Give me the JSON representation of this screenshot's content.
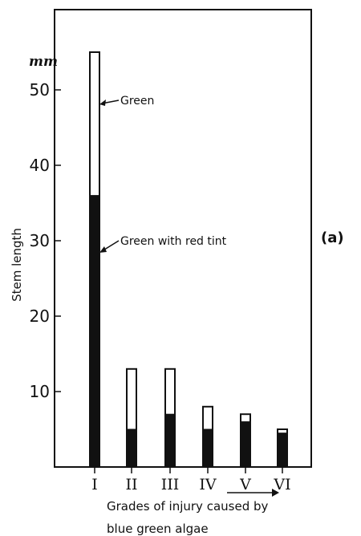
{
  "chart_data": {
    "type": "bar",
    "stacked": true,
    "categories": [
      "I",
      "II",
      "III",
      "IV",
      "V",
      "VI"
    ],
    "series": [
      {
        "name": "Green with red tint",
        "values": [
          36,
          5,
          7,
          5,
          6,
          4.5
        ],
        "color": "#111111"
      },
      {
        "name": "Green",
        "values": [
          19,
          8,
          6,
          3,
          1,
          0.5
        ],
        "color": "#ffffff"
      }
    ],
    "y_unit": "mm",
    "ylabel": "Stem length",
    "xlabel_lines": [
      "Grades of injury caused by",
      "blue green algae"
    ],
    "ylim": [
      0,
      60
    ],
    "yticks": [
      10,
      20,
      30,
      40,
      50
    ],
    "grid": false,
    "panel_label": "(a)"
  }
}
